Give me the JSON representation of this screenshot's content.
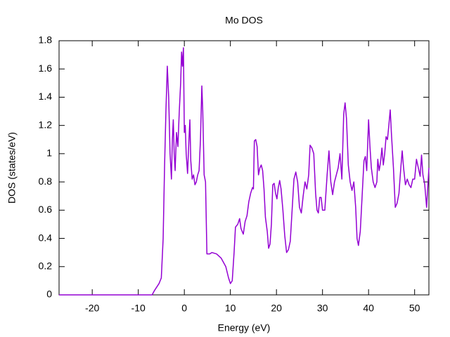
{
  "chart_data": {
    "type": "line",
    "title": "Mo DOS",
    "x_label": "Energy (eV)",
    "y_label": "DOS (states/eV)",
    "xlim": [
      -27.2,
      53.1
    ],
    "ylim": [
      0,
      1.8
    ],
    "xticks": [
      -20,
      -10,
      0,
      10,
      20,
      30,
      40,
      50
    ],
    "yticks": [
      0,
      0.2,
      0.4,
      0.6,
      0.8,
      1,
      1.2,
      1.4,
      1.6,
      1.8
    ],
    "grid": false,
    "series": [
      {
        "name": "Mo",
        "color": "#9400d3",
        "x": [
          -27.2,
          -7,
          -6.5,
          -5.5,
          -5,
          -4.6,
          -4.3,
          -4.0,
          -3.7,
          -3.4,
          -3.1,
          -2.8,
          -2.6,
          -2.4,
          -2.2,
          -2.0,
          -1.7,
          -1.4,
          -1.1,
          -0.8,
          -0.6,
          -0.4,
          -0.2,
          0.0,
          0.2,
          0.4,
          0.7,
          1.0,
          1.2,
          1.4,
          1.7,
          2.0,
          2.3,
          2.6,
          2.9,
          3.2,
          3.5,
          3.8,
          4.0,
          4.3,
          4.6,
          4.9,
          5.5,
          6.0,
          7.0,
          8.0,
          9.0,
          9.6,
          10.0,
          10.4,
          10.8,
          11.1,
          11.6,
          12.0,
          12.3,
          12.8,
          13.2,
          13.6,
          14.0,
          14.4,
          14.8,
          15.0,
          15.2,
          15.5,
          15.8,
          16.1,
          16.4,
          16.7,
          17.0,
          17.3,
          17.6,
          18.0,
          18.3,
          18.6,
          18.9,
          19.2,
          19.5,
          19.8,
          20.1,
          20.4,
          20.7,
          21.0,
          21.4,
          21.8,
          22.2,
          22.6,
          23.0,
          23.4,
          23.8,
          24.2,
          24.6,
          25.0,
          25.4,
          25.8,
          26.2,
          26.6,
          27.0,
          27.3,
          27.7,
          28.1,
          28.5,
          28.8,
          29.1,
          29.4,
          29.7,
          30.0,
          30.5,
          31.0,
          31.4,
          31.8,
          32.2,
          32.6,
          33.0,
          33.4,
          33.8,
          34.2,
          34.6,
          34.9,
          35.2,
          35.6,
          36.0,
          36.4,
          36.8,
          37.2,
          37.5,
          37.8,
          38.2,
          38.6,
          39.0,
          39.3,
          39.6,
          40.0,
          40.3,
          40.6,
          41.0,
          41.4,
          41.8,
          42.0,
          42.3,
          42.6,
          42.9,
          43.2,
          43.5,
          43.8,
          44.1,
          44.4,
          44.7,
          45.0,
          45.4,
          45.8,
          46.2,
          46.6,
          47.0,
          47.3,
          47.6,
          48.0,
          48.4,
          48.8,
          49.2,
          49.6,
          50.0,
          50.4,
          50.8,
          51.2,
          51.5,
          51.8,
          52.2,
          52.6,
          53.1
        ],
        "values": [
          0,
          0,
          0.03,
          0.08,
          0.12,
          0.4,
          0.9,
          1.3,
          1.62,
          1.4,
          1.0,
          0.82,
          1.1,
          1.24,
          1.0,
          0.88,
          1.15,
          1.05,
          1.3,
          1.5,
          1.72,
          1.62,
          1.75,
          1.15,
          1.2,
          1.0,
          0.86,
          1.1,
          1.24,
          0.95,
          0.82,
          0.85,
          0.78,
          0.8,
          0.85,
          0.88,
          1.1,
          1.48,
          1.3,
          0.85,
          0.8,
          0.29,
          0.29,
          0.3,
          0.29,
          0.26,
          0.2,
          0.12,
          0.08,
          0.1,
          0.3,
          0.48,
          0.5,
          0.54,
          0.47,
          0.43,
          0.52,
          0.56,
          0.66,
          0.72,
          0.76,
          0.75,
          1.09,
          1.1,
          1.05,
          0.85,
          0.9,
          0.92,
          0.88,
          0.75,
          0.55,
          0.45,
          0.33,
          0.36,
          0.5,
          0.78,
          0.79,
          0.72,
          0.68,
          0.76,
          0.81,
          0.75,
          0.6,
          0.42,
          0.3,
          0.32,
          0.38,
          0.6,
          0.82,
          0.87,
          0.8,
          0.62,
          0.58,
          0.7,
          0.8,
          0.75,
          0.85,
          1.06,
          1.04,
          1.0,
          0.72,
          0.6,
          0.58,
          0.69,
          0.69,
          0.6,
          0.6,
          0.85,
          1.02,
          0.8,
          0.71,
          0.8,
          0.85,
          0.9,
          1.0,
          0.82,
          1.28,
          1.36,
          1.25,
          0.92,
          0.8,
          0.74,
          0.8,
          0.62,
          0.4,
          0.35,
          0.45,
          0.7,
          0.95,
          0.98,
          0.88,
          1.24,
          1.05,
          0.9,
          0.8,
          0.76,
          0.8,
          0.96,
          0.88,
          0.94,
          1.04,
          0.92,
          1.0,
          1.12,
          1.1,
          1.2,
          1.31,
          1.12,
          0.9,
          0.62,
          0.65,
          0.72,
          0.9,
          1.02,
          0.9,
          0.78,
          0.82,
          0.78,
          0.76,
          0.82,
          0.82,
          0.96,
          0.9,
          0.84,
          0.99,
          0.85,
          0.78,
          0.62,
          0.9
        ]
      }
    ]
  }
}
